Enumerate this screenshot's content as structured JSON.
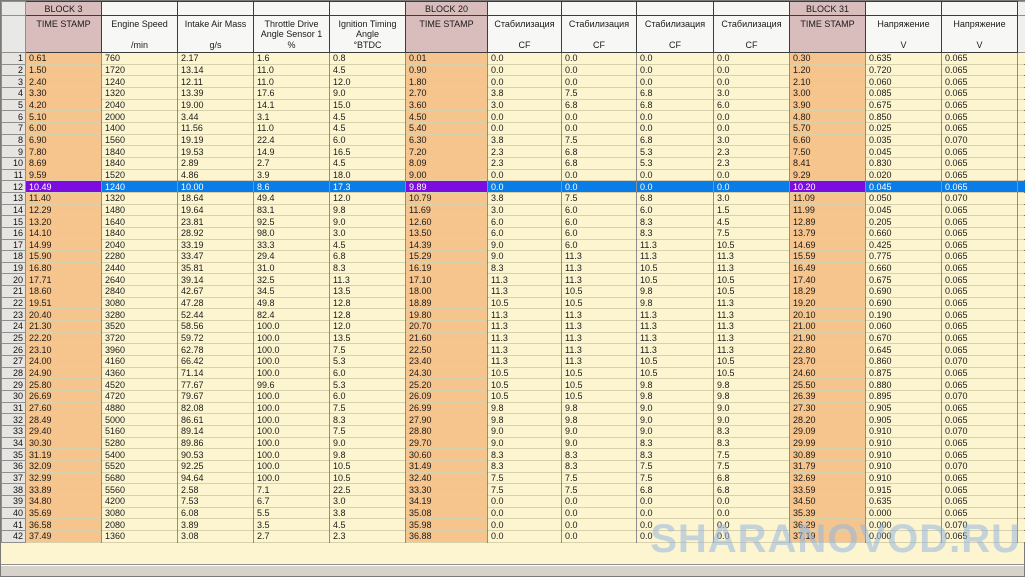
{
  "watermark": "SHARANOVOD.RU",
  "colors": {
    "sel-blue": "#0a7ce8",
    "sel-purple": "#7c0ce0",
    "block-header": "#d9bcbc",
    "timestamp-col": "#f6c48d",
    "data-cell": "#fcf5d0"
  },
  "table": {
    "selected_row": 12,
    "columns": [
      {
        "title": "TIME STAMP",
        "unit": "",
        "block": "BLOCK 3",
        "ts": true
      },
      {
        "title": "Engine Speed",
        "unit": "/min"
      },
      {
        "title": "Intake Air Mass",
        "unit": "g/s"
      },
      {
        "title": "Throttle Drive Angle Sensor 1",
        "unit": "%"
      },
      {
        "title": "Ignition Timing Angle",
        "unit": "°BTDC"
      },
      {
        "title": "TIME STAMP",
        "unit": "",
        "block": "BLOCK 20",
        "ts": true
      },
      {
        "title": "Стабилизация",
        "unit": "CF"
      },
      {
        "title": "Стабилизация",
        "unit": "CF"
      },
      {
        "title": "Стабилизация",
        "unit": "CF"
      },
      {
        "title": "Стабилизация",
        "unit": "CF"
      },
      {
        "title": "TIME STAMP",
        "unit": "",
        "block": "BLOCK 31",
        "ts": true
      },
      {
        "title": "Напряжение",
        "unit": "V"
      },
      {
        "title": "Напряжение",
        "unit": "V"
      }
    ],
    "rows": [
      {
        "num": "1",
        "c": [
          "0.61",
          "760",
          "2.17",
          "1.6",
          "0.8",
          "0.01",
          "0.0",
          "0.0",
          "0.0",
          "0.0",
          "0.30",
          "0.635",
          "0.065"
        ]
      },
      {
        "num": "2",
        "c": [
          "1.50",
          "1720",
          "13.14",
          "11.0",
          "4.5",
          "0.90",
          "0.0",
          "0.0",
          "0.0",
          "0.0",
          "1.20",
          "0.720",
          "0.065"
        ]
      },
      {
        "num": "3",
        "c": [
          "2.40",
          "1240",
          "12.11",
          "11.0",
          "12.0",
          "1.80",
          "0.0",
          "0.0",
          "0.0",
          "0.0",
          "2.10",
          "0.060",
          "0.065"
        ]
      },
      {
        "num": "4",
        "c": [
          "3.30",
          "1320",
          "13.39",
          "17.6",
          "9.0",
          "2.70",
          "3.8",
          "7.5",
          "6.8",
          "3.0",
          "3.00",
          "0.085",
          "0.065"
        ]
      },
      {
        "num": "5",
        "c": [
          "4.20",
          "2040",
          "19.00",
          "14.1",
          "15.0",
          "3.60",
          "3.0",
          "6.8",
          "6.8",
          "6.0",
          "3.90",
          "0.675",
          "0.065"
        ]
      },
      {
        "num": "6",
        "c": [
          "5.10",
          "2000",
          "3.44",
          "3.1",
          "4.5",
          "4.50",
          "0.0",
          "0.0",
          "0.0",
          "0.0",
          "4.80",
          "0.850",
          "0.065"
        ]
      },
      {
        "num": "7",
        "c": [
          "6.00",
          "1400",
          "11.56",
          "11.0",
          "4.5",
          "5.40",
          "0.0",
          "0.0",
          "0.0",
          "0.0",
          "5.70",
          "0.025",
          "0.065"
        ]
      },
      {
        "num": "8",
        "c": [
          "6.90",
          "1560",
          "19.19",
          "22.4",
          "6.0",
          "6.30",
          "3.8",
          "7.5",
          "6.8",
          "3.0",
          "6.60",
          "0.035",
          "0.070"
        ]
      },
      {
        "num": "9",
        "c": [
          "7.80",
          "1840",
          "19.53",
          "14.9",
          "16.5",
          "7.20",
          "2.3",
          "6.8",
          "5.3",
          "2.3",
          "7.50",
          "0.045",
          "0.065"
        ]
      },
      {
        "num": "10",
        "c": [
          "8.69",
          "1840",
          "2.89",
          "2.7",
          "4.5",
          "8.09",
          "2.3",
          "6.8",
          "5.3",
          "2.3",
          "8.41",
          "0.830",
          "0.065"
        ]
      },
      {
        "num": "11",
        "c": [
          "9.59",
          "1520",
          "4.86",
          "3.9",
          "18.0",
          "9.00",
          "0.0",
          "0.0",
          "0.0",
          "0.0",
          "9.29",
          "0.020",
          "0.065"
        ]
      },
      {
        "num": "12",
        "c": [
          "10.49",
          "1240",
          "10.00",
          "8.6",
          "17.3",
          "9.89",
          "0.0",
          "0.0",
          "0.0",
          "0.0",
          "10.20",
          "0.045",
          "0.065"
        ]
      },
      {
        "num": "13",
        "c": [
          "11.40",
          "1320",
          "18.64",
          "49.4",
          "12.0",
          "10.79",
          "3.8",
          "7.5",
          "6.8",
          "3.0",
          "11.09",
          "0.050",
          "0.070"
        ]
      },
      {
        "num": "14",
        "c": [
          "12.29",
          "1480",
          "19.64",
          "83.1",
          "9.8",
          "11.69",
          "3.0",
          "6.0",
          "6.0",
          "1.5",
          "11.99",
          "0.045",
          "0.065"
        ]
      },
      {
        "num": "15",
        "c": [
          "13.20",
          "1640",
          "23.81",
          "92.5",
          "9.0",
          "12.60",
          "6.0",
          "6.0",
          "8.3",
          "4.5",
          "12.89",
          "0.205",
          "0.065"
        ]
      },
      {
        "num": "16",
        "c": [
          "14.10",
          "1840",
          "28.92",
          "98.0",
          "3.0",
          "13.50",
          "6.0",
          "6.0",
          "8.3",
          "7.5",
          "13.79",
          "0.660",
          "0.065"
        ]
      },
      {
        "num": "17",
        "c": [
          "14.99",
          "2040",
          "33.19",
          "33.3",
          "4.5",
          "14.39",
          "9.0",
          "6.0",
          "11.3",
          "10.5",
          "14.69",
          "0.425",
          "0.065"
        ]
      },
      {
        "num": "18",
        "c": [
          "15.90",
          "2280",
          "33.47",
          "29.4",
          "6.8",
          "15.29",
          "9.0",
          "11.3",
          "11.3",
          "11.3",
          "15.59",
          "0.775",
          "0.065"
        ]
      },
      {
        "num": "19",
        "c": [
          "16.80",
          "2440",
          "35.81",
          "31.0",
          "8.3",
          "16.19",
          "8.3",
          "11.3",
          "10.5",
          "11.3",
          "16.49",
          "0.660",
          "0.065"
        ]
      },
      {
        "num": "20",
        "c": [
          "17.71",
          "2640",
          "39.14",
          "32.5",
          "11.3",
          "17.10",
          "11.3",
          "11.3",
          "10.5",
          "10.5",
          "17.40",
          "0.675",
          "0.065"
        ]
      },
      {
        "num": "21",
        "c": [
          "18.60",
          "2840",
          "42.67",
          "34.5",
          "13.5",
          "18.00",
          "11.3",
          "10.5",
          "9.8",
          "10.5",
          "18.29",
          "0.690",
          "0.065"
        ]
      },
      {
        "num": "22",
        "c": [
          "19.51",
          "3080",
          "47.28",
          "49.8",
          "12.8",
          "18.89",
          "10.5",
          "10.5",
          "9.8",
          "11.3",
          "19.20",
          "0.690",
          "0.065"
        ]
      },
      {
        "num": "23",
        "c": [
          "20.40",
          "3280",
          "52.44",
          "82.4",
          "12.8",
          "19.80",
          "11.3",
          "11.3",
          "11.3",
          "11.3",
          "20.10",
          "0.190",
          "0.065"
        ]
      },
      {
        "num": "24",
        "c": [
          "21.30",
          "3520",
          "58.56",
          "100.0",
          "12.0",
          "20.70",
          "11.3",
          "11.3",
          "11.3",
          "11.3",
          "21.00",
          "0.060",
          "0.065"
        ]
      },
      {
        "num": "25",
        "c": [
          "22.20",
          "3720",
          "59.72",
          "100.0",
          "13.5",
          "21.60",
          "11.3",
          "11.3",
          "11.3",
          "11.3",
          "21.90",
          "0.670",
          "0.065"
        ]
      },
      {
        "num": "26",
        "c": [
          "23.10",
          "3960",
          "62.78",
          "100.0",
          "7.5",
          "22.50",
          "11.3",
          "11.3",
          "11.3",
          "11.3",
          "22.80",
          "0.645",
          "0.065"
        ]
      },
      {
        "num": "27",
        "c": [
          "24.00",
          "4160",
          "66.42",
          "100.0",
          "5.3",
          "23.40",
          "11.3",
          "11.3",
          "10.5",
          "10.5",
          "23.70",
          "0.860",
          "0.070"
        ]
      },
      {
        "num": "28",
        "c": [
          "24.90",
          "4360",
          "71.14",
          "100.0",
          "6.0",
          "24.30",
          "10.5",
          "10.5",
          "10.5",
          "10.5",
          "24.60",
          "0.875",
          "0.065"
        ]
      },
      {
        "num": "29",
        "c": [
          "25.80",
          "4520",
          "77.67",
          "99.6",
          "5.3",
          "25.20",
          "10.5",
          "10.5",
          "9.8",
          "9.8",
          "25.50",
          "0.880",
          "0.065"
        ]
      },
      {
        "num": "30",
        "c": [
          "26.69",
          "4720",
          "79.67",
          "100.0",
          "6.0",
          "26.09",
          "10.5",
          "10.5",
          "9.8",
          "9.8",
          "26.39",
          "0.895",
          "0.070"
        ]
      },
      {
        "num": "31",
        "c": [
          "27.60",
          "4880",
          "82.08",
          "100.0",
          "7.5",
          "26.99",
          "9.8",
          "9.8",
          "9.0",
          "9.0",
          "27.30",
          "0.905",
          "0.065"
        ]
      },
      {
        "num": "32",
        "c": [
          "28.49",
          "5000",
          "86.61",
          "100.0",
          "8.3",
          "27.90",
          "9.8",
          "9.8",
          "9.0",
          "9.0",
          "28.20",
          "0.905",
          "0.065"
        ]
      },
      {
        "num": "33",
        "c": [
          "29.40",
          "5160",
          "89.14",
          "100.0",
          "7.5",
          "28.80",
          "9.0",
          "9.0",
          "9.0",
          "8.3",
          "29.09",
          "0.910",
          "0.070"
        ]
      },
      {
        "num": "34",
        "c": [
          "30.30",
          "5280",
          "89.86",
          "100.0",
          "9.0",
          "29.70",
          "9.0",
          "9.0",
          "8.3",
          "8.3",
          "29.99",
          "0.910",
          "0.065"
        ]
      },
      {
        "num": "35",
        "c": [
          "31.19",
          "5400",
          "90.53",
          "100.0",
          "9.8",
          "30.60",
          "8.3",
          "8.3",
          "8.3",
          "7.5",
          "30.89",
          "0.910",
          "0.065"
        ]
      },
      {
        "num": "36",
        "c": [
          "32.09",
          "5520",
          "92.25",
          "100.0",
          "10.5",
          "31.49",
          "8.3",
          "8.3",
          "7.5",
          "7.5",
          "31.79",
          "0.910",
          "0.070"
        ]
      },
      {
        "num": "37",
        "c": [
          "32.99",
          "5680",
          "94.64",
          "100.0",
          "10.5",
          "32.40",
          "7.5",
          "7.5",
          "7.5",
          "6.8",
          "32.69",
          "0.910",
          "0.065"
        ]
      },
      {
        "num": "38",
        "c": [
          "33.89",
          "5560",
          "2.58",
          "7.1",
          "22.5",
          "33.30",
          "7.5",
          "7.5",
          "6.8",
          "6.8",
          "33.59",
          "0.915",
          "0.065"
        ]
      },
      {
        "num": "39",
        "c": [
          "34.80",
          "4200",
          "7.53",
          "6.7",
          "3.0",
          "34.19",
          "0.0",
          "0.0",
          "0.0",
          "0.0",
          "34.50",
          "0.635",
          "0.065"
        ]
      },
      {
        "num": "40",
        "c": [
          "35.69",
          "3080",
          "6.08",
          "5.5",
          "3.8",
          "35.08",
          "0.0",
          "0.0",
          "0.0",
          "0.0",
          "35.39",
          "0.000",
          "0.065"
        ]
      },
      {
        "num": "41",
        "c": [
          "36.58",
          "2080",
          "3.89",
          "3.5",
          "4.5",
          "35.98",
          "0.0",
          "0.0",
          "0.0",
          "0.0",
          "36.29",
          "0.000",
          "0.070"
        ]
      },
      {
        "num": "42",
        "c": [
          "37.49",
          "1360",
          "3.08",
          "2.7",
          "2.3",
          "36.88",
          "0.0",
          "0.0",
          "0.0",
          "0.0",
          "37.19",
          "0.000",
          "0.065"
        ]
      }
    ]
  }
}
